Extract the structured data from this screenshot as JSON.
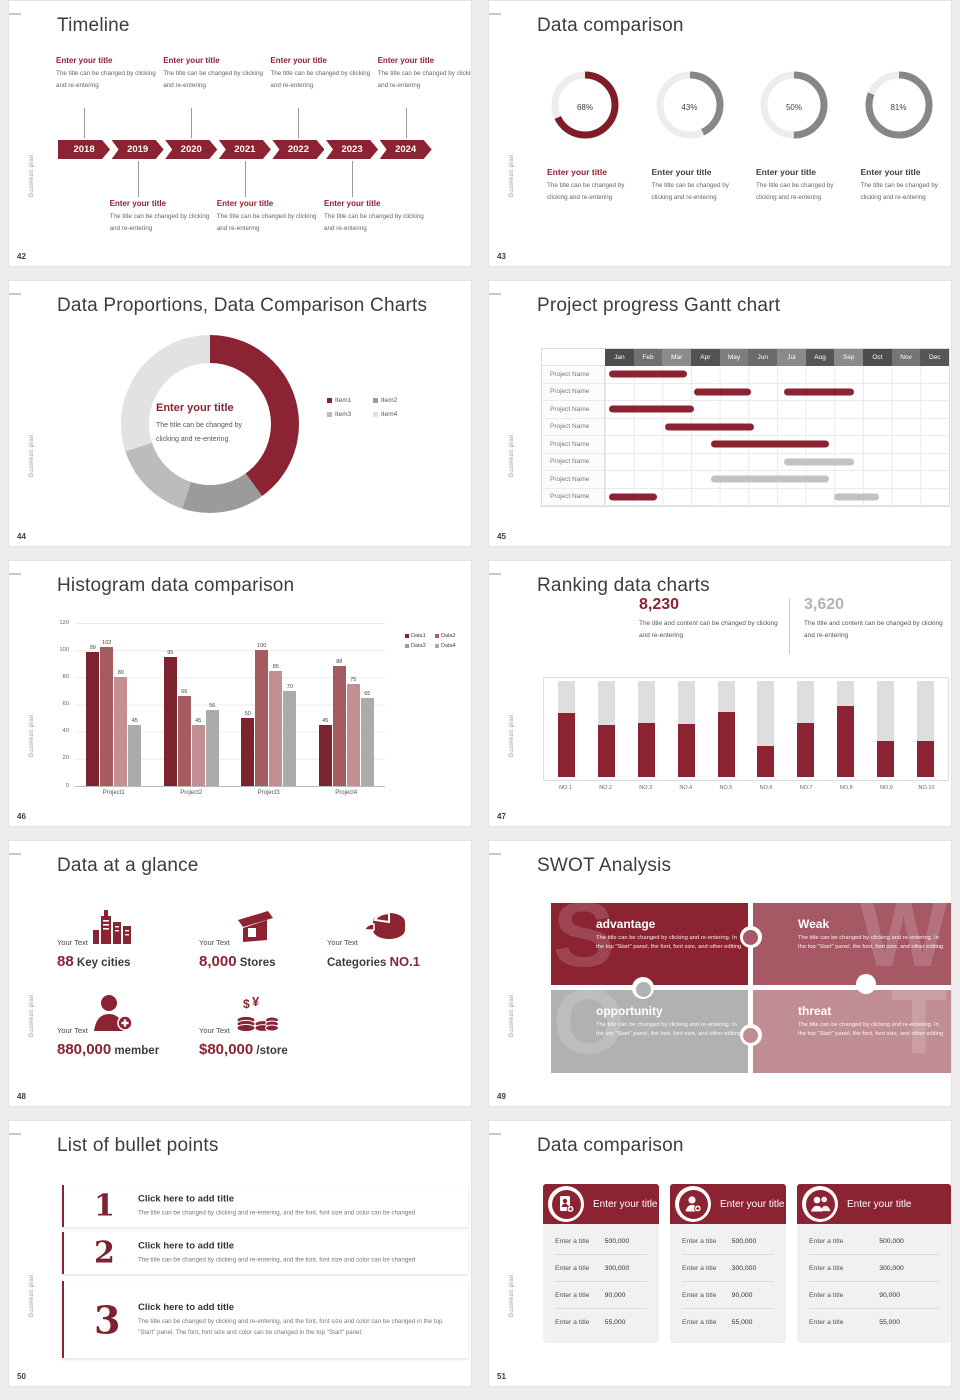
{
  "accent": "#8b2332",
  "page_bg": "#ededed",
  "sidebar_label": "Business plan",
  "slides": {
    "timeline": {
      "page": "42",
      "title": "Timeline",
      "years": [
        "2018",
        "2019",
        "2020",
        "2021",
        "2022",
        "2023",
        "2024"
      ],
      "top_items": [
        {
          "title": "Enter your title",
          "desc": "The title can be changed by clicking and re-entering"
        },
        {
          "title": "Enter your title",
          "desc": "The title can be changed by clicking and re-entering"
        },
        {
          "title": "Enter your title",
          "desc": "The title can be changed by clicking and re-entering"
        },
        {
          "title": "Enter your title",
          "desc": "The title can be changed by clicking and re-entering"
        }
      ],
      "bottom_items": [
        {
          "title": "Enter your title",
          "desc": "The title can be changed by clicking and re-entering"
        },
        {
          "title": "Enter your title",
          "desc": "The title can be changed by clicking and re-entering"
        },
        {
          "title": "Enter your title",
          "desc": "The title can be changed by clicking and re-entering"
        }
      ]
    },
    "donuts": {
      "page": "43",
      "title": "Data comparison",
      "items": [
        {
          "percent": "68",
          "accent": true,
          "title": "Enter your title",
          "desc": "The title can be changed by clicking and re-entering"
        },
        {
          "percent": "43",
          "accent": false,
          "title": "Enter your title",
          "desc": "The title can be changed by clicking and re-entering"
        },
        {
          "percent": "50",
          "accent": false,
          "title": "Enter your title",
          "desc": "The title can be changed by clicking and re-entering"
        },
        {
          "percent": "81",
          "accent": false,
          "title": "Enter your title",
          "desc": "The title can be changed by clicking and re-entering"
        }
      ]
    },
    "pie": {
      "page": "44",
      "title": "Data Proportions, Data Comparison Charts",
      "center_title": "Enter your title",
      "center_desc": "The title can be changed by clicking and re-entering",
      "legend": [
        {
          "label": "Item1",
          "color": "#8b2332"
        },
        {
          "label": "Item2",
          "color": "#9b9b9b"
        },
        {
          "label": "Item3",
          "color": "#bdbcbc"
        },
        {
          "label": "Item4",
          "color": "#e2e2e2"
        }
      ],
      "values": [
        40,
        15,
        15,
        30
      ]
    },
    "gantt": {
      "page": "45",
      "title": "Project progress Gantt chart",
      "row_label": "Project Name",
      "months": [
        {
          "label": "Jan",
          "color": "#4d4d4d"
        },
        {
          "label": "Feb",
          "color": "#707070"
        },
        {
          "label": "Mar",
          "color": "#8c8c8c"
        },
        {
          "label": "Apr",
          "color": "#525252"
        },
        {
          "label": "May",
          "color": "#7e7e7e"
        },
        {
          "label": "Jun",
          "color": "#6a6a6a"
        },
        {
          "label": "Jul",
          "color": "#8a8a8a"
        },
        {
          "label": "Aug",
          "color": "#565656"
        },
        {
          "label": "Sep",
          "color": "#8a8a8a"
        },
        {
          "label": "Oct",
          "color": "#4d4d4d"
        },
        {
          "label": "Nov",
          "color": "#757575"
        },
        {
          "label": "Dec",
          "color": "#565656"
        }
      ],
      "rows": [
        {
          "bars": [
            {
              "s": 0.15,
              "e": 2.85,
              "c": "#8b2332"
            }
          ]
        },
        {
          "bars": [
            {
              "s": 3.1,
              "e": 5.1,
              "c": "#8b2332"
            },
            {
              "s": 6.25,
              "e": 8.7,
              "c": "#8b2332"
            }
          ]
        },
        {
          "bars": [
            {
              "s": 0.15,
              "e": 3.1,
              "c": "#8b2332"
            }
          ]
        },
        {
          "bars": [
            {
              "s": 2.1,
              "e": 5.2,
              "c": "#8b2332"
            }
          ]
        },
        {
          "bars": [
            {
              "s": 3.7,
              "e": 7.8,
              "c": "#8b2332"
            }
          ]
        },
        {
          "bars": [
            {
              "s": 6.25,
              "e": 8.7,
              "c": "#c2c2c2"
            }
          ]
        },
        {
          "bars": [
            {
              "s": 3.7,
              "e": 7.8,
              "c": "#c2c2c2"
            }
          ]
        },
        {
          "bars": [
            {
              "s": 0.15,
              "e": 1.8,
              "c": "#8b2332"
            },
            {
              "s": 8.0,
              "e": 9.55,
              "c": "#c2c2c2"
            }
          ]
        }
      ]
    },
    "histogram": {
      "page": "46",
      "title": "Histogram data comparison",
      "categories": [
        "Project1",
        "Project2",
        "Project3",
        "Project4"
      ],
      "series": [
        {
          "name": "Data1",
          "color": "#7b2430",
          "values": [
            99,
            95,
            50,
            45
          ]
        },
        {
          "name": "Data2",
          "color": "#a65b61",
          "values": [
            102,
            66,
            100,
            88
          ]
        },
        {
          "name": "Data3",
          "color": "#c38f93",
          "values": [
            80,
            45,
            85,
            75
          ]
        },
        {
          "name": "Data4",
          "color": "#ababab",
          "values": [
            45,
            56,
            70,
            65
          ]
        }
      ],
      "y_ticks": [
        "120",
        "100",
        "80",
        "60",
        "40",
        "20",
        "0"
      ],
      "y_max": 120
    },
    "ranking": {
      "page": "47",
      "title": "Ranking data charts",
      "stats": [
        {
          "value": "8,230",
          "accent": true,
          "desc": "The title and content can be changed by clicking and re-entering"
        },
        {
          "value": "3,620",
          "accent": false,
          "desc": "The title and content can be changed by clicking and re-entering"
        }
      ],
      "categories": [
        "NO.1",
        "NO.2",
        "NO.3",
        "NO.4",
        "NO.5",
        "NO.6",
        "NO.7",
        "NO.8",
        "NO.9",
        "NO.10"
      ],
      "values_pct": [
        67,
        54,
        56,
        55,
        68,
        32,
        56,
        74,
        38,
        38
      ]
    },
    "glance": {
      "page": "48",
      "title": "Data at a glance",
      "items": [
        {
          "label": "Your Text",
          "accent": "88",
          "plain": "Key cities",
          "accent_first": true,
          "icon": "city-icon"
        },
        {
          "label": "Your Text",
          "accent": "8,000",
          "plain": "Stores",
          "accent_first": true,
          "icon": "store-icon"
        },
        {
          "label": "Your Text",
          "accent": "NO.1",
          "plain": "Categories",
          "accent_first": false,
          "icon": "categories-icon"
        },
        {
          "label": "Your Text",
          "accent": "880,000",
          "plain": "member",
          "accent_first": true,
          "icon": "member-icon"
        },
        {
          "label": "Your Text",
          "accent": "$80,000",
          "plain": "/store",
          "accent_first": true,
          "icon": "money-icon"
        }
      ]
    },
    "swot": {
      "page": "49",
      "title": "SWOT Analysis",
      "quads": [
        {
          "letter": "S",
          "title": "advantage",
          "color": "#8b2332",
          "letter_side": "left",
          "desc": "The title can be changed by clicking and re-entering. In the top \"Start\" panel, the font, font size, and other editing"
        },
        {
          "letter": "W",
          "title": "Weak",
          "color": "#a65864",
          "letter_side": "right",
          "desc": "The title can be changed by clicking and re-entering. In the top \"Start\" panel, the font, font size, and other editing"
        },
        {
          "letter": "O",
          "title": "opportunity",
          "color": "#b1b1b1",
          "letter_side": "left",
          "desc": "The title can be changed by clicking and re-entering. In the top \"Start\" panel, the font, font size, and other editing"
        },
        {
          "letter": "T",
          "title": "threat",
          "color": "#c08d93",
          "letter_side": "right",
          "desc": "The title can be changed by clicking and re-entering. In the top \"Start\" panel, the font, font size, and other editing"
        }
      ]
    },
    "bullets": {
      "page": "50",
      "title": "List of bullet points",
      "items": [
        {
          "num": "1",
          "title": "Click here to add title",
          "desc": "The title can be changed by clicking and re-entering, and the font, font size and color can be changed"
        },
        {
          "num": "2",
          "title": "Click here to add title",
          "desc": "The title can be changed by clicking and re-entering, and the font, font size and color can be changed"
        },
        {
          "num": "3",
          "title": "Click here to add title",
          "desc": "The title can be changed by clicking and re-entering, and the font, font size and color can be changed in the top \"Start\" panel. The font, font size and color can be changed in the top \"Start\" panel."
        }
      ]
    },
    "cards": {
      "page": "51",
      "title": "Data comparison",
      "cards": [
        {
          "title": "Enter your title",
          "icon": "idcard-icon",
          "rows": [
            {
              "label": "Enter a title",
              "value": "500,000"
            },
            {
              "label": "Enter a title",
              "value": "300,000"
            },
            {
              "label": "Enter a title",
              "value": "90,000"
            },
            {
              "label": "Enter a title",
              "value": "55,000"
            }
          ]
        },
        {
          "title": "Enter your title",
          "icon": "person-add-icon",
          "rows": [
            {
              "label": "Enter a title",
              "value": "500,000"
            },
            {
              "label": "Enter a title",
              "value": "300,000"
            },
            {
              "label": "Enter a title",
              "value": "90,000"
            },
            {
              "label": "Enter a title",
              "value": "55,000"
            }
          ]
        },
        {
          "title": "Enter your title",
          "icon": "people-icon",
          "rows": [
            {
              "label": "Enter a title",
              "value": "500,000"
            },
            {
              "label": "Enter a title",
              "value": "300,000"
            },
            {
              "label": "Enter a title",
              "value": "90,000"
            },
            {
              "label": "Enter a title",
              "value": "55,000"
            }
          ]
        }
      ]
    }
  },
  "chart_data": [
    {
      "type": "pie",
      "slide": "43",
      "title": "Data comparison",
      "note": "four progress donuts",
      "labels": [
        "Enter your title",
        "Enter your title",
        "Enter your title",
        "Enter your title"
      ],
      "values": [
        68,
        43,
        50,
        81
      ],
      "unit": "%"
    },
    {
      "type": "pie",
      "slide": "44",
      "title": "Data Proportions, Data Comparison Charts",
      "labels": [
        "Item1",
        "Item2",
        "Item3",
        "Item4"
      ],
      "values": [
        40,
        15,
        15,
        30
      ],
      "legend_position": "right"
    },
    {
      "type": "table",
      "slide": "45",
      "title": "Project progress Gantt chart",
      "x": [
        "Jan",
        "Feb",
        "Mar",
        "Apr",
        "May",
        "Jun",
        "Jul",
        "Aug",
        "Sep",
        "Oct",
        "Nov",
        "Dec"
      ],
      "rows": [
        "Project Name",
        "Project Name",
        "Project Name",
        "Project Name",
        "Project Name",
        "Project Name",
        "Project Name",
        "Project Name"
      ],
      "bars_month_spans": [
        [
          [
            0.15,
            2.85
          ]
        ],
        [
          [
            3.1,
            5.1
          ],
          [
            6.25,
            8.7
          ]
        ],
        [
          [
            0.15,
            3.1
          ]
        ],
        [
          [
            2.1,
            5.2
          ]
        ],
        [
          [
            3.7,
            7.8
          ]
        ],
        [
          [
            6.25,
            8.7
          ]
        ],
        [
          [
            3.7,
            7.8
          ]
        ],
        [
          [
            0.15,
            1.8
          ],
          [
            8.0,
            9.55
          ]
        ]
      ]
    },
    {
      "type": "bar",
      "slide": "46",
      "title": "Histogram data comparison",
      "categories": [
        "Project1",
        "Project2",
        "Project3",
        "Project4"
      ],
      "series": [
        {
          "name": "Data1",
          "values": [
            99,
            95,
            50,
            45
          ]
        },
        {
          "name": "Data2",
          "values": [
            102,
            66,
            100,
            88
          ]
        },
        {
          "name": "Data3",
          "values": [
            80,
            45,
            85,
            75
          ]
        },
        {
          "name": "Data4",
          "values": [
            45,
            56,
            70,
            65
          ]
        }
      ],
      "ylim": [
        0,
        120
      ],
      "grid": true,
      "legend_position": "top-right"
    },
    {
      "type": "bar",
      "slide": "47",
      "title": "Ranking data charts",
      "categories": [
        "NO.1",
        "NO.2",
        "NO.3",
        "NO.4",
        "NO.5",
        "NO.6",
        "NO.7",
        "NO.8",
        "NO.9",
        "NO.10"
      ],
      "values": [
        67,
        54,
        56,
        55,
        68,
        32,
        56,
        74,
        38,
        38
      ],
      "ylim": [
        0,
        100
      ],
      "annotations": [
        "8,230",
        "3,620"
      ]
    }
  ]
}
